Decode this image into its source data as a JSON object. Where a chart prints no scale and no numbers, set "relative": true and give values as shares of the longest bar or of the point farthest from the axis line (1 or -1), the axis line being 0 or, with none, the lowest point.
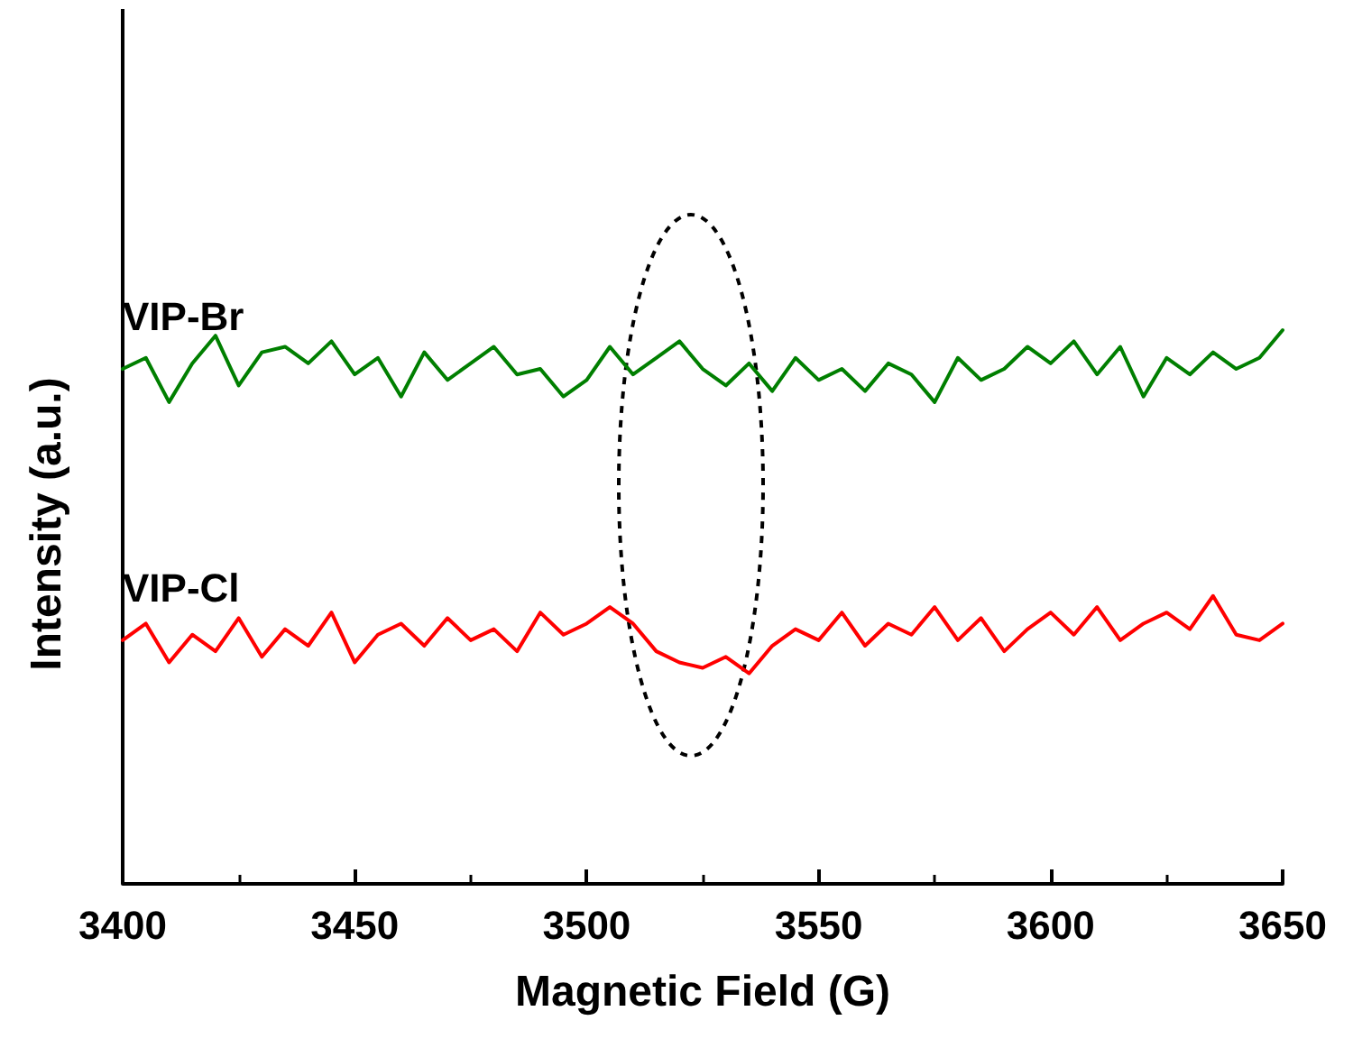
{
  "chart_data": {
    "type": "line",
    "xlabel": "Magnetic Field (G)",
    "ylabel": "Intensity (a.u.)",
    "relative": true,
    "xlim": [
      3400,
      3650
    ],
    "xticks": [
      3400,
      3450,
      3500,
      3550,
      3600,
      3650
    ],
    "grid": false,
    "legend": false,
    "marker": "none",
    "line_style": "solid",
    "x": [
      3400,
      3405,
      3410,
      3415,
      3420,
      3425,
      3430,
      3435,
      3440,
      3445,
      3450,
      3455,
      3460,
      3465,
      3470,
      3475,
      3480,
      3485,
      3490,
      3495,
      3500,
      3505,
      3510,
      3515,
      3520,
      3525,
      3530,
      3535,
      3540,
      3545,
      3550,
      3555,
      3560,
      3565,
      3570,
      3575,
      3580,
      3585,
      3590,
      3595,
      3600,
      3605,
      3610,
      3615,
      3620,
      3625,
      3630,
      3635,
      3640,
      3645,
      3650
    ],
    "series": [
      {
        "name": "VIP-Br",
        "color": "#007f00",
        "values": [
          0.93,
          0.95,
          0.87,
          0.94,
          0.99,
          0.9,
          0.96,
          0.97,
          0.94,
          0.98,
          0.92,
          0.95,
          0.88,
          0.96,
          0.91,
          0.94,
          0.97,
          0.92,
          0.93,
          0.88,
          0.91,
          0.97,
          0.92,
          0.95,
          0.98,
          0.93,
          0.9,
          0.94,
          0.89,
          0.95,
          0.91,
          0.93,
          0.89,
          0.94,
          0.92,
          0.87,
          0.95,
          0.91,
          0.93,
          0.97,
          0.94,
          0.98,
          0.92,
          0.97,
          0.88,
          0.95,
          0.92,
          0.96,
          0.93,
          0.95,
          1.0
        ]
      },
      {
        "name": "VIP-Cl",
        "color": "#ff0000",
        "values": [
          0.44,
          0.47,
          0.4,
          0.45,
          0.42,
          0.48,
          0.41,
          0.46,
          0.43,
          0.49,
          0.4,
          0.45,
          0.47,
          0.43,
          0.48,
          0.44,
          0.46,
          0.42,
          0.49,
          0.45,
          0.47,
          0.5,
          0.47,
          0.42,
          0.4,
          0.39,
          0.41,
          0.38,
          0.43,
          0.46,
          0.44,
          0.49,
          0.43,
          0.47,
          0.45,
          0.5,
          0.44,
          0.48,
          0.42,
          0.46,
          0.49,
          0.45,
          0.5,
          0.44,
          0.47,
          0.49,
          0.46,
          0.52,
          0.45,
          0.44,
          0.47
        ]
      }
    ]
  }
}
